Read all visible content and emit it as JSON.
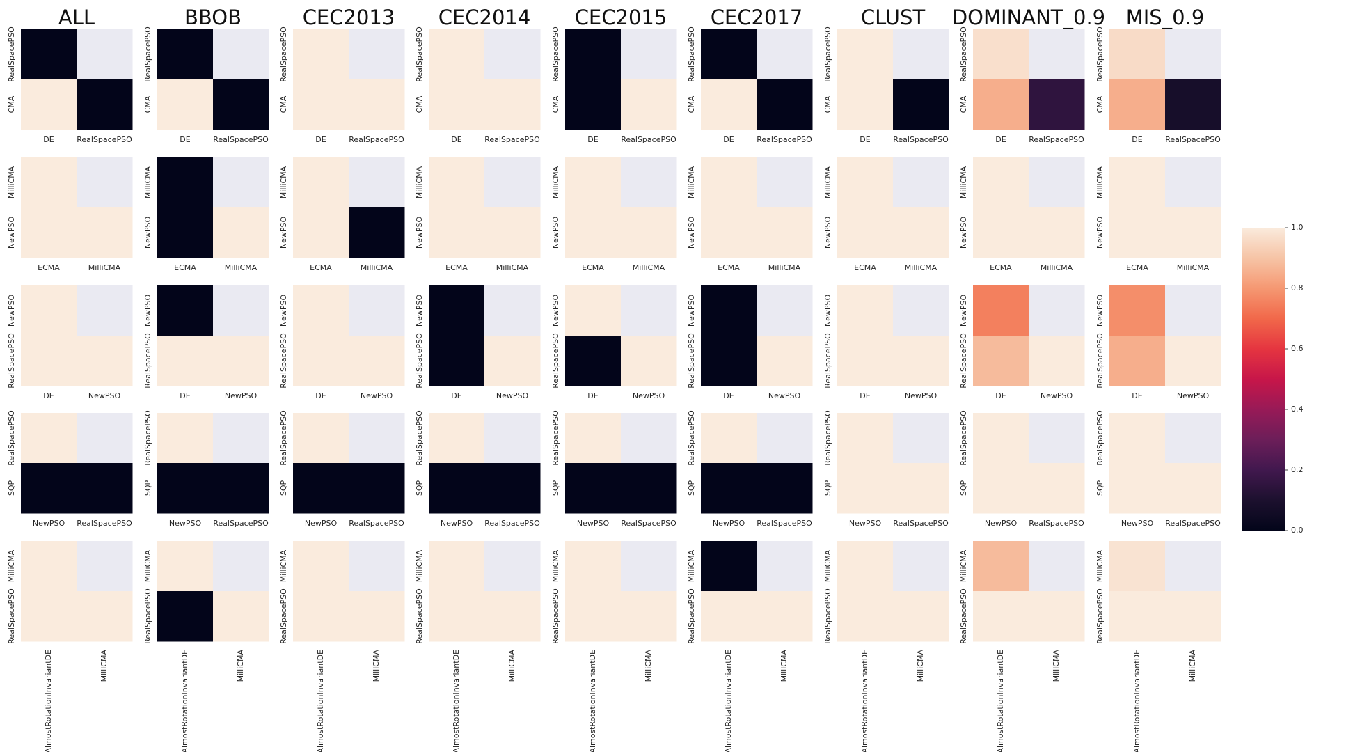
{
  "chart_data": {
    "type": "heatmap",
    "description_note": "",
    "columns": [
      "ALL",
      "BBOB",
      "CEC2013",
      "CEC2014",
      "CEC2015",
      "CEC2017",
      "CLUST",
      "DOMINANT_0.9",
      "MIS_0.9"
    ],
    "rows": [
      {
        "xlabels": [
          "DE",
          "RealSpacePSO"
        ],
        "ylabels": [
          "RealSpacePSO",
          "CMA"
        ]
      },
      {
        "xlabels": [
          "ECMA",
          "MilliCMA"
        ],
        "ylabels": [
          "MilliCMA",
          "NewPSO"
        ]
      },
      {
        "xlabels": [
          "DE",
          "NewPSO"
        ],
        "ylabels": [
          "NewPSO",
          "RealSpacePSO"
        ]
      },
      {
        "xlabels": [
          "NewPSO",
          "RealSpacePSO"
        ],
        "ylabels": [
          "RealSpacePSO",
          "SQP"
        ]
      },
      {
        "xlabels": [
          "AlmostRotationInvariantDE",
          "MilliCMA"
        ],
        "ylabels": [
          "MilliCMA",
          "RealSpacePSO"
        ]
      }
    ],
    "values": [
      [
        [
          [
            0.0,
            null
          ],
          [
            1.0,
            0.0
          ]
        ],
        [
          [
            0.0,
            null
          ],
          [
            1.0,
            0.0
          ]
        ],
        [
          [
            1.0,
            null
          ],
          [
            1.0,
            1.0
          ]
        ],
        [
          [
            1.0,
            null
          ],
          [
            1.0,
            1.0
          ]
        ],
        [
          [
            0.0,
            null
          ],
          [
            0.0,
            1.0
          ]
        ],
        [
          [
            0.0,
            null
          ],
          [
            1.0,
            0.0
          ]
        ],
        [
          [
            1.0,
            null
          ],
          [
            1.0,
            0.0
          ]
        ],
        [
          [
            0.97,
            null
          ],
          [
            0.85,
            0.15
          ]
        ],
        [
          [
            0.96,
            null
          ],
          [
            0.85,
            0.08
          ]
        ]
      ],
      [
        [
          [
            1.0,
            null
          ],
          [
            1.0,
            1.0
          ]
        ],
        [
          [
            0.0,
            null
          ],
          [
            0.0,
            1.0
          ]
        ],
        [
          [
            1.0,
            null
          ],
          [
            1.0,
            0.0
          ]
        ],
        [
          [
            1.0,
            null
          ],
          [
            1.0,
            1.0
          ]
        ],
        [
          [
            1.0,
            null
          ],
          [
            1.0,
            1.0
          ]
        ],
        [
          [
            1.0,
            null
          ],
          [
            1.0,
            1.0
          ]
        ],
        [
          [
            1.0,
            null
          ],
          [
            1.0,
            1.0
          ]
        ],
        [
          [
            1.0,
            null
          ],
          [
            1.0,
            1.0
          ]
        ],
        [
          [
            1.0,
            null
          ],
          [
            1.0,
            1.0
          ]
        ]
      ],
      [
        [
          [
            1.0,
            null
          ],
          [
            1.0,
            1.0
          ]
        ],
        [
          [
            0.0,
            null
          ],
          [
            1.0,
            1.0
          ]
        ],
        [
          [
            1.0,
            null
          ],
          [
            1.0,
            1.0
          ]
        ],
        [
          [
            0.0,
            null
          ],
          [
            0.0,
            1.0
          ]
        ],
        [
          [
            1.0,
            null
          ],
          [
            0.0,
            1.0
          ]
        ],
        [
          [
            0.0,
            null
          ],
          [
            0.0,
            1.0
          ]
        ],
        [
          [
            1.0,
            null
          ],
          [
            1.0,
            1.0
          ]
        ],
        [
          [
            0.75,
            null
          ],
          [
            0.88,
            1.0
          ]
        ],
        [
          [
            0.78,
            null
          ],
          [
            0.85,
            1.0
          ]
        ]
      ],
      [
        [
          [
            1.0,
            null
          ],
          [
            0.0,
            0.0
          ]
        ],
        [
          [
            1.0,
            null
          ],
          [
            0.0,
            0.0
          ]
        ],
        [
          [
            1.0,
            null
          ],
          [
            0.0,
            0.0
          ]
        ],
        [
          [
            1.0,
            null
          ],
          [
            0.0,
            0.0
          ]
        ],
        [
          [
            1.0,
            null
          ],
          [
            0.0,
            0.0
          ]
        ],
        [
          [
            1.0,
            null
          ],
          [
            0.0,
            0.0
          ]
        ],
        [
          [
            1.0,
            null
          ],
          [
            1.0,
            1.0
          ]
        ],
        [
          [
            1.0,
            null
          ],
          [
            1.0,
            1.0
          ]
        ],
        [
          [
            1.0,
            null
          ],
          [
            1.0,
            1.0
          ]
        ]
      ],
      [
        [
          [
            1.0,
            null
          ],
          [
            1.0,
            1.0
          ]
        ],
        [
          [
            1.0,
            null
          ],
          [
            0.0,
            1.0
          ]
        ],
        [
          [
            1.0,
            null
          ],
          [
            1.0,
            1.0
          ]
        ],
        [
          [
            1.0,
            null
          ],
          [
            1.0,
            1.0
          ]
        ],
        [
          [
            1.0,
            null
          ],
          [
            1.0,
            1.0
          ]
        ],
        [
          [
            0.0,
            null
          ],
          [
            1.0,
            1.0
          ]
        ],
        [
          [
            1.0,
            null
          ],
          [
            1.0,
            1.0
          ]
        ],
        [
          [
            0.88,
            null
          ],
          [
            1.0,
            1.0
          ]
        ],
        [
          [
            0.98,
            null
          ],
          [
            1.0,
            1.0
          ]
        ]
      ]
    ],
    "colorbar": {
      "range": [
        0.0,
        1.0
      ],
      "ticks": [
        "0.0",
        "0.2",
        "0.4",
        "0.6",
        "0.8",
        "1.0"
      ],
      "colormap": "rocket"
    },
    "colors": {
      "masked_cell": "#eaeaf2",
      "background": "#ffffff",
      "text": "#262626"
    }
  }
}
